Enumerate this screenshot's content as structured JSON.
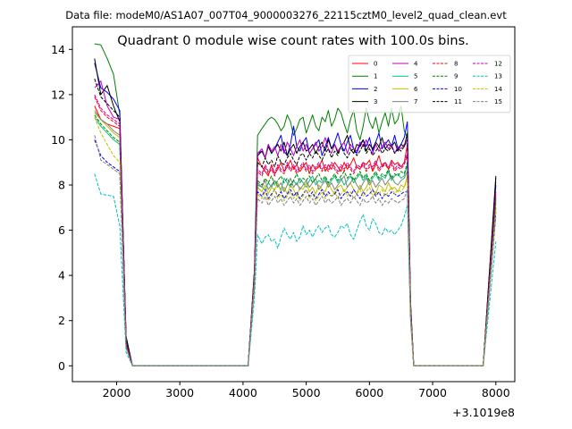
{
  "figure": {
    "suptitle": "Data file: modeM0/AS1A07_007T04_9000003276_22115cztM0_level2_quad_clean.evt",
    "offset_label": "+3.1019e8"
  },
  "chart_data": {
    "type": "line",
    "title": "Quadrant 0 module wise count rates with 100.0s bins.",
    "xlabel": "",
    "ylabel": "",
    "x_offset": 310190000,
    "xlim": [
      1300,
      8300
    ],
    "ylim": [
      -0.7,
      15.0
    ],
    "xticks": [
      2000,
      3000,
      4000,
      5000,
      6000,
      7000,
      8000
    ],
    "yticks": [
      0,
      2,
      4,
      6,
      8,
      10,
      12,
      14
    ],
    "grid": false,
    "legend": {
      "placement": "top-right",
      "columns": 4
    },
    "x": [
      1650,
      1750,
      1850,
      1950,
      2050,
      2150,
      2250,
      3250,
      4080,
      4180,
      4230,
      4300,
      4350,
      4400,
      4450,
      4500,
      4550,
      4600,
      4650,
      4700,
      4750,
      4800,
      4850,
      4900,
      4950,
      5000,
      5050,
      5100,
      5150,
      5200,
      5250,
      5300,
      5350,
      5400,
      5450,
      5500,
      5550,
      5600,
      5650,
      5700,
      5750,
      5800,
      5850,
      5900,
      5950,
      6000,
      6050,
      6100,
      6150,
      6200,
      6250,
      6300,
      6350,
      6400,
      6450,
      6500,
      6550,
      6600,
      6650,
      6700,
      7000,
      7800,
      8000
    ],
    "series": [
      {
        "name": "0",
        "color": "#ff0000",
        "dash": "solid",
        "values": [
          11.5,
          10.9,
          10.7,
          10.6,
          10.5,
          0.9,
          0,
          0,
          0,
          4.0,
          9.2,
          8.8,
          8.6,
          8.4,
          8.9,
          8.5,
          8.7,
          9.0,
          8.6,
          8.8,
          9.1,
          8.7,
          8.9,
          8.6,
          8.8,
          9.0,
          8.5,
          8.9,
          8.7,
          8.8,
          9.1,
          8.6,
          8.9,
          8.7,
          9.0,
          8.8,
          8.6,
          9.0,
          8.7,
          8.9,
          9.2,
          8.8,
          8.7,
          9.0,
          8.9,
          9.1,
          8.6,
          8.9,
          9.3,
          8.8,
          9.0,
          8.7,
          9.1,
          8.9,
          9.0,
          8.8,
          9.0,
          9.8,
          2.6,
          0,
          0,
          0,
          7.0
        ]
      },
      {
        "name": "1",
        "color": "#008000",
        "dash": "solid",
        "values": [
          14.25,
          14.2,
          13.6,
          12.9,
          11.1,
          1.2,
          0,
          0,
          0,
          4.3,
          10.2,
          10.5,
          10.7,
          10.9,
          11.0,
          10.9,
          10.7,
          10.4,
          10.6,
          11.1,
          10.8,
          10.2,
          10.5,
          10.9,
          11.0,
          10.3,
          10.7,
          11.1,
          10.6,
          10.4,
          11.0,
          10.8,
          11.3,
          10.6,
          10.9,
          11.4,
          11.2,
          10.7,
          10.3,
          10.9,
          11.3,
          10.4,
          10.0,
          10.6,
          11.4,
          10.8,
          10.5,
          11.0,
          10.3,
          10.8,
          11.2,
          10.6,
          11.4,
          10.7,
          10.9,
          11.5,
          10.4,
          10.1,
          2.9,
          0,
          0,
          0,
          8.3
        ]
      },
      {
        "name": "2",
        "color": "#0000ff",
        "dash": "solid",
        "values": [
          13.4,
          12.3,
          12.1,
          11.8,
          11.3,
          1.1,
          0,
          0,
          0,
          4.1,
          9.4,
          9.5,
          9.2,
          9.8,
          9.4,
          9.6,
          9.9,
          10.2,
          9.5,
          9.3,
          9.8,
          10.6,
          9.7,
          9.5,
          9.9,
          10.1,
          9.4,
          9.6,
          9.8,
          10.0,
          9.3,
          9.7,
          10.1,
          9.6,
          9.9,
          10.3,
          9.8,
          9.5,
          9.9,
          10.2,
          9.6,
          9.4,
          9.8,
          10.0,
          9.7,
          10.1,
          9.5,
          9.9,
          10.3,
          9.6,
          9.8,
          10.0,
          9.7,
          10.2,
          9.6,
          9.8,
          10.1,
          10.8,
          2.8,
          0,
          0,
          0,
          8.0
        ]
      },
      {
        "name": "3",
        "color": "#000000",
        "dash": "solid",
        "values": [
          13.6,
          12.0,
          12.4,
          11.5,
          10.8,
          1.3,
          0,
          0,
          0,
          4.2,
          9.3,
          9.5,
          9.2,
          9.7,
          9.4,
          9.6,
          9.8,
          9.5,
          9.9,
          9.3,
          9.6,
          9.8,
          9.4,
          9.7,
          9.9,
          9.5,
          9.6,
          9.8,
          9.4,
          9.7,
          9.9,
          9.5,
          10.0,
          9.6,
          9.8,
          9.4,
          9.7,
          9.9,
          10.2,
          9.6,
          9.4,
          9.8,
          9.7,
          10.0,
          9.5,
          9.8,
          9.6,
          9.9,
          9.7,
          10.1,
          9.6,
          9.8,
          9.7,
          9.9,
          9.5,
          9.8,
          9.7,
          10.3,
          2.7,
          0,
          0,
          0,
          8.4
        ]
      },
      {
        "name": "4",
        "color": "#bf00bf",
        "dash": "solid",
        "values": [
          12.3,
          12.6,
          11.5,
          11.0,
          10.9,
          1.0,
          0,
          0,
          0,
          4.0,
          9.4,
          9.6,
          9.2,
          9.8,
          9.5,
          9.7,
          9.3,
          9.8,
          9.4,
          9.9,
          9.6,
          9.3,
          9.7,
          10.0,
          9.5,
          9.8,
          9.4,
          9.6,
          9.9,
          9.5,
          9.7,
          10.1,
          9.6,
          9.4,
          9.8,
          9.5,
          9.7,
          9.9,
          9.4,
          9.8,
          9.6,
          9.5,
          9.9,
          9.7,
          10.0,
          9.6,
          9.4,
          9.8,
          9.5,
          9.7,
          9.9,
          9.6,
          9.8,
          9.4,
          9.7,
          9.6,
          9.8,
          10.0,
          2.7,
          0,
          0,
          0,
          7.5
        ]
      },
      {
        "name": "5",
        "color": "#00bf80",
        "dash": "solid",
        "values": [
          11.0,
          10.6,
          10.3,
          10.0,
          9.8,
          0.9,
          0,
          0,
          0,
          3.8,
          8.0,
          7.9,
          7.8,
          8.1,
          7.9,
          8.2,
          8.0,
          7.8,
          8.3,
          8.1,
          7.9,
          8.2,
          8.0,
          8.3,
          8.1,
          7.9,
          8.2,
          8.4,
          8.0,
          8.2,
          8.1,
          8.3,
          8.0,
          8.2,
          8.4,
          8.1,
          8.3,
          8.0,
          8.2,
          8.4,
          8.1,
          8.3,
          8.5,
          8.2,
          8.4,
          8.1,
          8.3,
          8.5,
          8.2,
          8.4,
          8.3,
          8.6,
          8.2,
          8.4,
          8.5,
          8.3,
          8.4,
          8.9,
          2.4,
          0,
          0,
          0,
          7.3
        ]
      },
      {
        "name": "6",
        "color": "#bfbf00",
        "dash": "solid",
        "values": [
          11.2,
          10.9,
          10.6,
          10.3,
          10.1,
          0.9,
          0,
          0,
          0,
          3.9,
          7.9,
          7.7,
          8.0,
          7.6,
          7.9,
          7.8,
          8.1,
          7.7,
          7.9,
          7.6,
          8.0,
          7.8,
          7.5,
          7.9,
          7.8,
          8.1,
          7.7,
          7.9,
          7.6,
          8.0,
          7.8,
          7.7,
          8.1,
          7.8,
          7.6,
          7.9,
          8.0,
          7.7,
          7.9,
          8.1,
          7.8,
          7.6,
          8.0,
          7.7,
          7.9,
          8.2,
          7.8,
          7.6,
          8.0,
          7.9,
          7.7,
          8.1,
          7.8,
          7.9,
          7.7,
          8.0,
          7.9,
          8.4,
          2.3,
          0,
          0,
          0,
          7.0
        ]
      },
      {
        "name": "7",
        "color": "#808080",
        "dash": "solid",
        "values": [
          11.3,
          10.9,
          10.7,
          10.4,
          10.2,
          0.9,
          0,
          0,
          0,
          3.9,
          8.1,
          7.9,
          8.2,
          7.8,
          8.0,
          8.2,
          7.9,
          8.1,
          7.7,
          8.0,
          8.3,
          7.9,
          8.1,
          7.8,
          8.0,
          8.2,
          7.9,
          8.1,
          8.3,
          7.8,
          8.0,
          8.2,
          7.9,
          8.1,
          7.8,
          8.0,
          8.2,
          8.4,
          7.9,
          8.1,
          8.3,
          8.0,
          7.8,
          8.1,
          8.3,
          8.0,
          8.2,
          7.9,
          8.1,
          8.3,
          8.0,
          8.2,
          8.4,
          8.1,
          8.0,
          8.2,
          8.3,
          8.6,
          2.4,
          0,
          0,
          0,
          7.2
        ]
      },
      {
        "name": "8",
        "color": "#ff0000",
        "dash": "dashed",
        "values": [
          11.9,
          11.3,
          11.0,
          10.8,
          10.6,
          1.0,
          0,
          0,
          0,
          4.0,
          8.6,
          8.4,
          8.8,
          8.5,
          8.7,
          8.4,
          8.8,
          8.6,
          8.5,
          8.9,
          8.6,
          8.8,
          8.5,
          8.7,
          8.9,
          8.6,
          8.8,
          8.5,
          8.7,
          8.9,
          8.6,
          8.8,
          8.6,
          8.9,
          8.7,
          8.5,
          8.8,
          8.6,
          8.9,
          8.7,
          8.5,
          8.8,
          8.7,
          8.9,
          8.6,
          8.8,
          8.7,
          9.0,
          8.6,
          8.8,
          8.9,
          8.7,
          8.9,
          8.6,
          8.8,
          8.7,
          8.9,
          9.3,
          2.5,
          0,
          0,
          0,
          7.6
        ]
      },
      {
        "name": "9",
        "color": "#008000",
        "dash": "dashed",
        "values": [
          11.1,
          10.7,
          10.4,
          10.1,
          9.9,
          0.9,
          0,
          0,
          0,
          3.8,
          8.2,
          8.0,
          8.3,
          8.1,
          8.4,
          8.0,
          8.2,
          8.4,
          8.1,
          8.3,
          8.0,
          8.2,
          8.5,
          8.1,
          8.3,
          8.2,
          8.4,
          8.1,
          8.3,
          8.5,
          8.2,
          8.4,
          8.1,
          8.3,
          8.5,
          8.2,
          8.4,
          8.6,
          8.3,
          8.5,
          8.2,
          8.4,
          8.6,
          8.3,
          8.5,
          8.2,
          8.4,
          8.6,
          8.3,
          8.5,
          8.4,
          8.7,
          8.3,
          8.5,
          8.4,
          8.6,
          8.5,
          9.0,
          2.4,
          0,
          0,
          0,
          7.4
        ]
      },
      {
        "name": "10",
        "color": "#0000ff",
        "dash": "dashed",
        "values": [
          10.0,
          9.3,
          9.0,
          8.8,
          8.6,
          0.8,
          0,
          0,
          0,
          3.6,
          7.7,
          7.5,
          7.8,
          7.4,
          7.6,
          7.8,
          7.5,
          7.7,
          7.4,
          7.6,
          7.8,
          7.5,
          7.7,
          7.4,
          7.6,
          7.8,
          7.5,
          7.7,
          7.4,
          7.6,
          7.8,
          7.5,
          7.7,
          7.5,
          7.6,
          7.8,
          7.4,
          7.6,
          7.7,
          7.5,
          7.8,
          7.6,
          7.4,
          7.7,
          7.5,
          7.6,
          7.8,
          7.5,
          7.7,
          7.4,
          7.6,
          7.5,
          7.7,
          7.6,
          7.5,
          7.6,
          7.7,
          7.7,
          2.2,
          0,
          0,
          0,
          6.8
        ]
      },
      {
        "name": "11",
        "color": "#000000",
        "dash": "dashed",
        "values": [
          12.7,
          11.9,
          11.6,
          11.3,
          11.0,
          1.1,
          0,
          0,
          0,
          4.1,
          9.0,
          8.8,
          9.2,
          8.9,
          9.1,
          8.8,
          9.3,
          9.0,
          8.9,
          9.2,
          9.4,
          9.1,
          8.9,
          9.3,
          9.4,
          9.1,
          9.4,
          9.2,
          9.5,
          9.3,
          9.1,
          9.4,
          9.6,
          9.2,
          9.5,
          9.3,
          9.7,
          9.4,
          9.2,
          9.5,
          9.6,
          9.3,
          9.5,
          9.8,
          9.4,
          9.6,
          9.3,
          9.5,
          9.7,
          9.4,
          9.6,
          9.5,
          9.7,
          9.4,
          9.6,
          9.5,
          9.7,
          10.0,
          2.6,
          0,
          0,
          0,
          8.2
        ]
      },
      {
        "name": "12",
        "color": "#bf00bf",
        "dash": "dashed",
        "values": [
          12.0,
          11.4,
          11.1,
          10.9,
          10.7,
          1.0,
          0,
          0,
          0,
          4.0,
          8.7,
          8.5,
          8.9,
          8.6,
          8.8,
          8.5,
          8.9,
          8.7,
          8.6,
          9.0,
          8.7,
          8.9,
          8.6,
          8.8,
          9.0,
          8.7,
          8.9,
          8.6,
          8.8,
          9.0,
          8.7,
          8.9,
          8.7,
          9.0,
          8.8,
          8.6,
          8.9,
          8.7,
          9.0,
          8.8,
          8.6,
          8.9,
          8.8,
          9.0,
          8.7,
          8.9,
          8.8,
          9.1,
          8.7,
          8.9,
          9.0,
          8.8,
          9.0,
          8.7,
          8.9,
          8.8,
          9.0,
          9.4,
          2.5,
          0,
          0,
          0,
          7.7
        ]
      },
      {
        "name": "13",
        "color": "#00bfbf",
        "dash": "dashed",
        "values": [
          8.5,
          7.6,
          7.55,
          7.5,
          6.2,
          0.6,
          0,
          0,
          0,
          3.0,
          5.8,
          5.4,
          5.7,
          5.8,
          5.5,
          5.6,
          5.2,
          5.7,
          6.1,
          5.8,
          5.6,
          5.9,
          5.5,
          5.7,
          6.2,
          5.8,
          6.0,
          5.7,
          6.0,
          6.2,
          5.9,
          6.1,
          6.2,
          5.8,
          5.7,
          5.9,
          6.2,
          6.1,
          6.3,
          5.8,
          5.6,
          6.0,
          6.4,
          6.7,
          6.2,
          6.0,
          6.5,
          6.3,
          5.9,
          5.8,
          6.1,
          5.9,
          6.0,
          5.8,
          6.0,
          6.2,
          6.6,
          7.1,
          2.0,
          0,
          0,
          0,
          5.5
        ]
      },
      {
        "name": "14",
        "color": "#bfbf00",
        "dash": "dashed",
        "values": [
          11.0,
          10.3,
          9.8,
          9.3,
          9.0,
          0.8,
          0,
          0,
          0,
          3.7,
          7.6,
          7.4,
          7.7,
          7.3,
          7.5,
          7.8,
          7.4,
          7.6,
          7.3,
          7.5,
          7.7,
          7.4,
          7.6,
          7.3,
          7.5,
          7.8,
          7.4,
          7.6,
          7.3,
          7.5,
          7.7,
          7.4,
          7.6,
          7.5,
          7.7,
          7.4,
          7.6,
          7.8,
          7.5,
          7.7,
          7.4,
          7.6,
          7.8,
          7.5,
          7.7,
          7.9,
          7.5,
          7.7,
          7.6,
          7.8,
          7.5,
          7.7,
          7.9,
          7.6,
          7.8,
          7.7,
          7.9,
          8.2,
          2.3,
          0,
          0,
          0,
          6.9
        ]
      },
      {
        "name": "15",
        "color": "#808080",
        "dash": "dashed",
        "values": [
          10.2,
          9.1,
          8.9,
          8.7,
          8.5,
          0.8,
          0,
          0,
          0,
          3.5,
          7.4,
          7.2,
          7.5,
          7.1,
          7.3,
          7.5,
          7.2,
          7.4,
          7.1,
          7.3,
          7.5,
          7.2,
          7.4,
          7.1,
          7.3,
          7.5,
          7.2,
          7.4,
          7.1,
          7.3,
          7.5,
          7.2,
          7.4,
          7.2,
          7.3,
          7.5,
          7.1,
          7.3,
          7.4,
          7.2,
          7.5,
          7.3,
          7.1,
          7.4,
          7.2,
          7.3,
          7.5,
          7.2,
          7.4,
          7.1,
          7.3,
          7.2,
          7.4,
          7.3,
          7.2,
          7.3,
          7.4,
          7.8,
          2.1,
          0,
          0,
          0,
          6.6
        ]
      }
    ]
  }
}
